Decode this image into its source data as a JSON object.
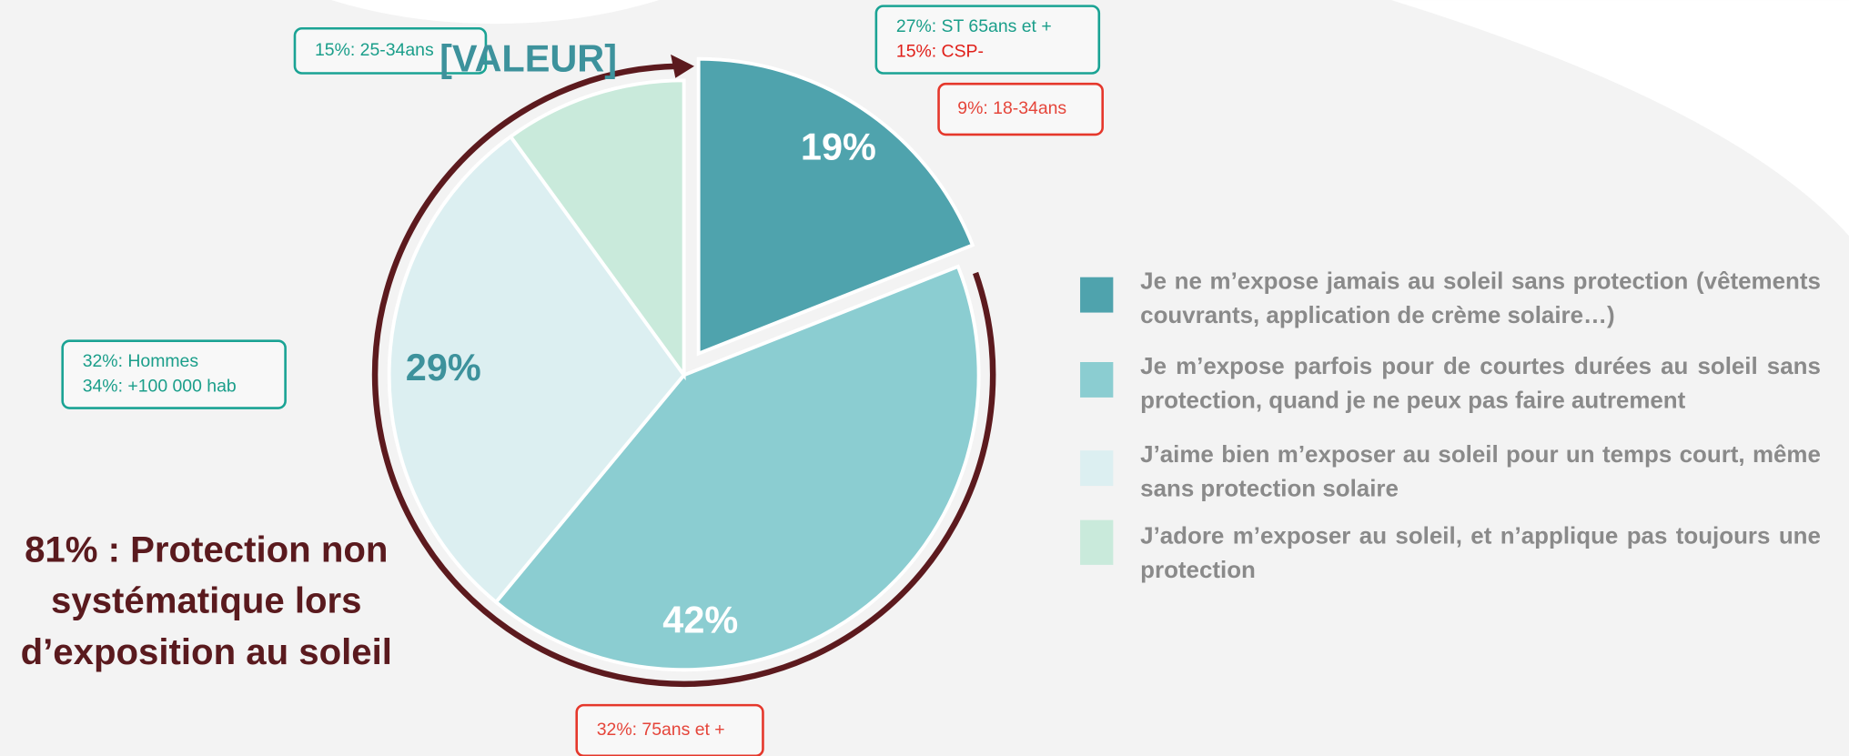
{
  "chart_data": {
    "type": "pie",
    "categories": [
      "Je ne m’expose jamais au soleil sans protection (vêtements couvrants, application de crème solaire…)",
      "Je m’expose parfois pour de courtes durées au soleil sans protection, quand je ne peux pas faire autrement",
      "J’aime bien m’exposer au soleil pour un temps court, même sans protection solaire",
      "J’adore m’exposer au soleil, et n’applique pas toujours une protection"
    ],
    "values": [
      19,
      42,
      29,
      10
    ],
    "value_labels": [
      "19%",
      "42%",
      "29%",
      "[VALEUR]"
    ],
    "colors": [
      "#4fa3ad",
      "#8bcdd1",
      "#dceff1",
      "#c9eadb"
    ],
    "label_colors": [
      "#ffffff",
      "#ffffff",
      "#3d929c",
      "#3d929c"
    ],
    "callout": [
      "81% : Protection non",
      "systématique lors",
      "d’exposition au soleil"
    ],
    "annotations": [
      {
        "lines": [
          {
            "text": "15%:  25-34ans",
            "color": "#1a9e8a"
          }
        ],
        "border": "#1aa394"
      },
      {
        "lines": [
          {
            "text": "27%: ST 65ans et +",
            "color": "#1a9e8a"
          },
          {
            "text": "15%: CSP-",
            "color": "#e0201a"
          }
        ],
        "border": "#1aa394"
      },
      {
        "lines": [
          {
            "text": "9%: 18-34ans",
            "color": "#e5453a"
          }
        ],
        "border": "#e5372b"
      },
      {
        "lines": [
          {
            "text": "32%: Hommes",
            "color": "#1a9e8a"
          },
          {
            "text": "34%: +100 000 hab",
            "color": "#1a9e8a"
          }
        ],
        "border": "#1aa394"
      },
      {
        "lines": [
          {
            "text": "32%: 75ans et +",
            "color": "#e5453a"
          }
        ],
        "border": "#e5372b"
      }
    ]
  }
}
